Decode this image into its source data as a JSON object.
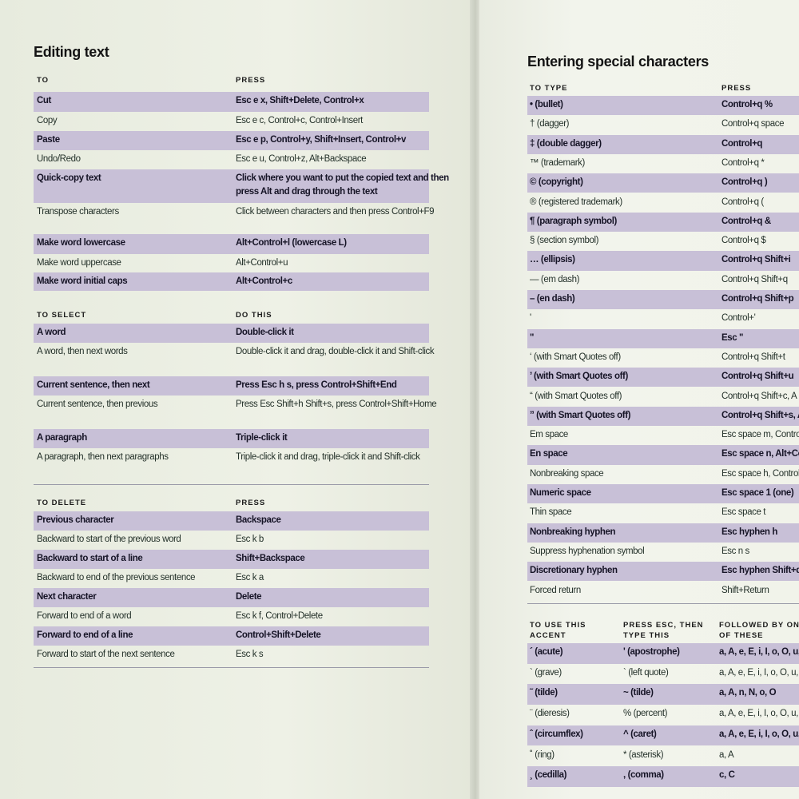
{
  "left_page": {
    "title": "Editing text",
    "sections": [
      {
        "headers": [
          "TO",
          "PRESS"
        ],
        "rows": [
          [
            "Cut",
            "Esc e x, Shift+Delete, Control+x"
          ],
          [
            "Copy",
            "Esc e c, Control+c, Control+Insert"
          ],
          [
            "Paste",
            "Esc e p, Control+y, Shift+Insert, Control+v"
          ],
          [
            "Undo/Redo",
            "Esc e u, Control+z, Alt+Backspace"
          ],
          [
            "Quick-copy text",
            "Click where you want to put the copied text and then press Alt and drag through the text"
          ],
          [
            "Transpose characters",
            "Click between characters and then press Control+F9"
          ],
          [
            "Make word lowercase",
            "Alt+Control+l (lowercase L)"
          ],
          [
            "Make word uppercase",
            "Alt+Control+u"
          ],
          [
            "Make word initial caps",
            "Alt+Control+c"
          ]
        ]
      },
      {
        "headers": [
          "TO SELECT",
          "DO THIS"
        ],
        "rows": [
          [
            "A word",
            "Double-click it"
          ],
          [
            "A word, then next words",
            "Double-click it and drag, double-click it and Shift-click"
          ],
          [
            "Current sentence, then next",
            "Press Esc h s, press Control+Shift+End"
          ],
          [
            "Current sentence, then previous",
            "Press Esc Shift+h Shift+s, press Control+Shift+Home"
          ],
          [
            "A paragraph",
            "Triple-click it"
          ],
          [
            "A paragraph, then next paragraphs",
            "Triple-click it and drag, triple-click it and Shift-click"
          ]
        ]
      },
      {
        "headers": [
          "TO DELETE",
          "PRESS"
        ],
        "rows": [
          [
            "Previous character",
            "Backspace"
          ],
          [
            "Backward to start of the previous word",
            "Esc k b"
          ],
          [
            "Backward to start of a line",
            "Shift+Backspace"
          ],
          [
            "Backward to end of the previous sentence",
            "Esc k a"
          ],
          [
            "Next character",
            "Delete"
          ],
          [
            "Forward to end of a word",
            "Esc k f, Control+Delete"
          ],
          [
            "Forward to end of a line",
            "Control+Shift+Delete"
          ],
          [
            "Forward to start of the next sentence",
            "Esc k s"
          ]
        ]
      }
    ]
  },
  "right_page": {
    "title": "Entering special characters",
    "sections": [
      {
        "headers": [
          "TO TYPE",
          "PRESS"
        ],
        "rows": [
          [
            "• (bullet)",
            "Control+q %"
          ],
          [
            "† (dagger)",
            "Control+q space"
          ],
          [
            "‡ (double dagger)",
            "Control+q"
          ],
          [
            "™ (trademark)",
            "Control+q *"
          ],
          [
            "© (copyright)",
            "Control+q )"
          ],
          [
            "® (registered trademark)",
            "Control+q ("
          ],
          [
            "¶ (paragraph symbol)",
            "Control+q &"
          ],
          [
            "§ (section symbol)",
            "Control+q $"
          ],
          [
            "… (ellipsis)",
            "Control+q Shift+i"
          ],
          [
            "— (em dash)",
            "Control+q Shift+q"
          ],
          [
            "– (en dash)",
            "Control+q Shift+p"
          ],
          [
            "'",
            "Control+'"
          ],
          [
            "\"",
            "Esc \""
          ],
          [
            "‘ (with Smart Quotes off)",
            "Control+q Shift+t"
          ],
          [
            "’ (with Smart Quotes off)",
            "Control+q Shift+u"
          ],
          [
            "“ (with Smart Quotes off)",
            "Control+q Shift+c, A"
          ],
          [
            "” (with Smart Quotes off)",
            "Control+q Shift+s, A"
          ],
          [
            "Em space",
            "Esc space m, Contro"
          ],
          [
            "En space",
            "Esc space n, Alt+Co"
          ],
          [
            "Nonbreaking space",
            "Esc space h, Control"
          ],
          [
            "Numeric space",
            "Esc space 1 (one)"
          ],
          [
            "Thin space",
            "Esc space t"
          ],
          [
            "Nonbreaking hyphen",
            "Esc hyphen h"
          ],
          [
            "Suppress hyphenation symbol",
            "Esc n s"
          ],
          [
            "Discretionary hyphen",
            "Esc hyphen Shift+d,"
          ],
          [
            "Forced return",
            "Shift+Return"
          ]
        ]
      },
      {
        "headers": [
          "TO USE THIS ACCENT",
          "PRESS ESC, THEN TYPE THIS",
          "FOLLOWED BY ONE OF THESE"
        ],
        "rows": [
          [
            "´ (acute)",
            "' (apostrophe)",
            "a, A, e, E, i, I, o, O, u,"
          ],
          [
            "` (grave)",
            "` (left quote)",
            "a, A, e, E, i, I, o, O, u,"
          ],
          [
            "˜ (tilde)",
            "~ (tilde)",
            "a, A, n, N, o, O"
          ],
          [
            "¨ (dieresis)",
            "% (percent)",
            "a, A, e, E, i, I, o, O, u,"
          ],
          [
            "ˆ (circumflex)",
            "^ (caret)",
            "a, A, e, E, i, I, o, O, u,"
          ],
          [
            "˚ (ring)",
            "* (asterisk)",
            "a, A"
          ],
          [
            "¸ (cedilla)",
            ", (comma)",
            "c, C"
          ]
        ]
      }
    ]
  },
  "colors": {
    "row_shade": "#c8c0d7",
    "paper": "#eef1e6"
  }
}
